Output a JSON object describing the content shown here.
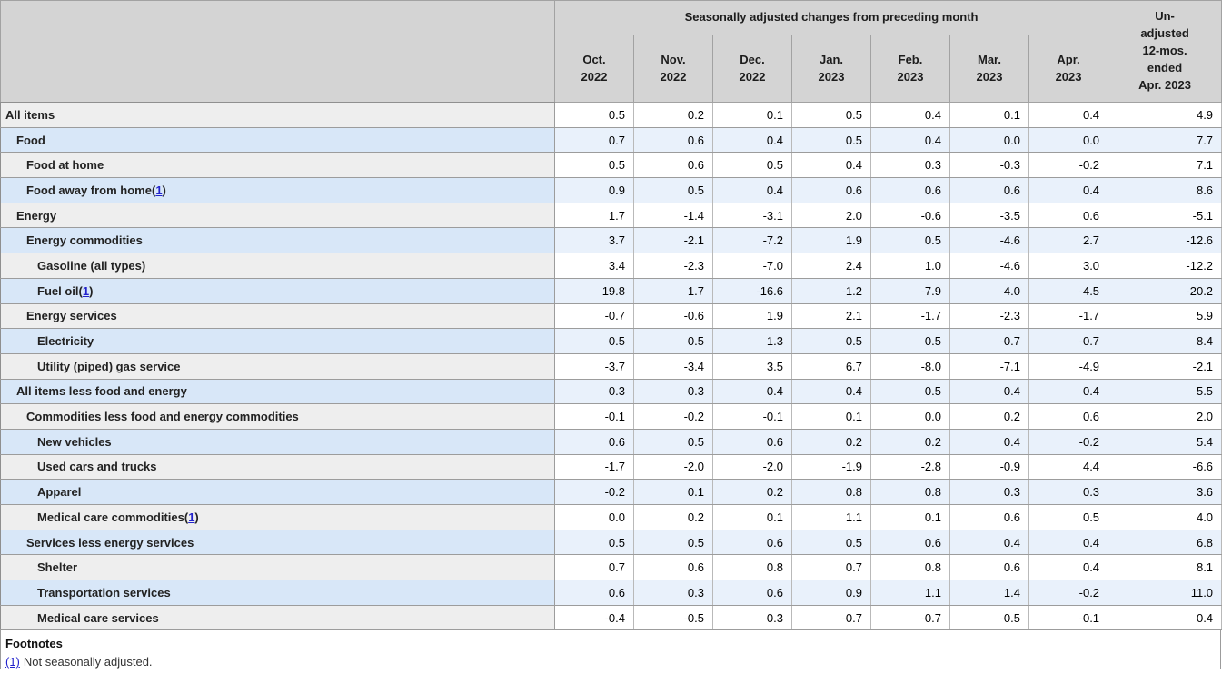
{
  "table": {
    "col_group_title": "Seasonally adjusted changes from preceding month",
    "unadjusted_lines": [
      "Un-",
      "adjusted",
      "12-mos.",
      "ended",
      "Apr. 2023"
    ],
    "months": [
      {
        "month": "Oct.",
        "year": "2022"
      },
      {
        "month": "Nov.",
        "year": "2022"
      },
      {
        "month": "Dec.",
        "year": "2022"
      },
      {
        "month": "Jan.",
        "year": "2023"
      },
      {
        "month": "Feb.",
        "year": "2023"
      },
      {
        "month": "Mar.",
        "year": "2023"
      },
      {
        "month": "Apr.",
        "year": "2023"
      }
    ],
    "rows": [
      {
        "label": "All items",
        "indent": 0,
        "footnote_ref": null,
        "values": [
          "0.5",
          "0.2",
          "0.1",
          "0.5",
          "0.4",
          "0.1",
          "0.4"
        ],
        "unadjusted": "4.9"
      },
      {
        "label": "Food",
        "indent": 1,
        "footnote_ref": null,
        "values": [
          "0.7",
          "0.6",
          "0.4",
          "0.5",
          "0.4",
          "0.0",
          "0.0"
        ],
        "unadjusted": "7.7"
      },
      {
        "label": "Food at home",
        "indent": 2,
        "footnote_ref": null,
        "values": [
          "0.5",
          "0.6",
          "0.5",
          "0.4",
          "0.3",
          "-0.3",
          "-0.2"
        ],
        "unadjusted": "7.1"
      },
      {
        "label": "Food away from home",
        "indent": 2,
        "footnote_ref": "1",
        "values": [
          "0.9",
          "0.5",
          "0.4",
          "0.6",
          "0.6",
          "0.6",
          "0.4"
        ],
        "unadjusted": "8.6"
      },
      {
        "label": "Energy",
        "indent": 1,
        "footnote_ref": null,
        "values": [
          "1.7",
          "-1.4",
          "-3.1",
          "2.0",
          "-0.6",
          "-3.5",
          "0.6"
        ],
        "unadjusted": "-5.1"
      },
      {
        "label": "Energy commodities",
        "indent": 2,
        "footnote_ref": null,
        "values": [
          "3.7",
          "-2.1",
          "-7.2",
          "1.9",
          "0.5",
          "-4.6",
          "2.7"
        ],
        "unadjusted": "-12.6"
      },
      {
        "label": "Gasoline (all types)",
        "indent": 3,
        "footnote_ref": null,
        "values": [
          "3.4",
          "-2.3",
          "-7.0",
          "2.4",
          "1.0",
          "-4.6",
          "3.0"
        ],
        "unadjusted": "-12.2"
      },
      {
        "label": "Fuel oil",
        "indent": 3,
        "footnote_ref": "1",
        "values": [
          "19.8",
          "1.7",
          "-16.6",
          "-1.2",
          "-7.9",
          "-4.0",
          "-4.5"
        ],
        "unadjusted": "-20.2"
      },
      {
        "label": "Energy services",
        "indent": 2,
        "footnote_ref": null,
        "values": [
          "-0.7",
          "-0.6",
          "1.9",
          "2.1",
          "-1.7",
          "-2.3",
          "-1.7"
        ],
        "unadjusted": "5.9"
      },
      {
        "label": "Electricity",
        "indent": 3,
        "footnote_ref": null,
        "values": [
          "0.5",
          "0.5",
          "1.3",
          "0.5",
          "0.5",
          "-0.7",
          "-0.7"
        ],
        "unadjusted": "8.4"
      },
      {
        "label": "Utility (piped) gas service",
        "indent": 3,
        "footnote_ref": null,
        "values": [
          "-3.7",
          "-3.4",
          "3.5",
          "6.7",
          "-8.0",
          "-7.1",
          "-4.9"
        ],
        "unadjusted": "-2.1"
      },
      {
        "label": "All items less food and energy",
        "indent": 1,
        "footnote_ref": null,
        "values": [
          "0.3",
          "0.3",
          "0.4",
          "0.4",
          "0.5",
          "0.4",
          "0.4"
        ],
        "unadjusted": "5.5"
      },
      {
        "label": "Commodities less food and energy commodities",
        "indent": 2,
        "footnote_ref": null,
        "values": [
          "-0.1",
          "-0.2",
          "-0.1",
          "0.1",
          "0.0",
          "0.2",
          "0.6"
        ],
        "unadjusted": "2.0"
      },
      {
        "label": "New vehicles",
        "indent": 3,
        "footnote_ref": null,
        "values": [
          "0.6",
          "0.5",
          "0.6",
          "0.2",
          "0.2",
          "0.4",
          "-0.2"
        ],
        "unadjusted": "5.4"
      },
      {
        "label": "Used cars and trucks",
        "indent": 3,
        "footnote_ref": null,
        "values": [
          "-1.7",
          "-2.0",
          "-2.0",
          "-1.9",
          "-2.8",
          "-0.9",
          "4.4"
        ],
        "unadjusted": "-6.6"
      },
      {
        "label": "Apparel",
        "indent": 3,
        "footnote_ref": null,
        "values": [
          "-0.2",
          "0.1",
          "0.2",
          "0.8",
          "0.8",
          "0.3",
          "0.3"
        ],
        "unadjusted": "3.6"
      },
      {
        "label": "Medical care commodities",
        "indent": 3,
        "footnote_ref": "1",
        "values": [
          "0.0",
          "0.2",
          "0.1",
          "1.1",
          "0.1",
          "0.6",
          "0.5"
        ],
        "unadjusted": "4.0"
      },
      {
        "label": "Services less energy services",
        "indent": 2,
        "footnote_ref": null,
        "values": [
          "0.5",
          "0.5",
          "0.6",
          "0.5",
          "0.6",
          "0.4",
          "0.4"
        ],
        "unadjusted": "6.8"
      },
      {
        "label": "Shelter",
        "indent": 3,
        "footnote_ref": null,
        "values": [
          "0.7",
          "0.6",
          "0.8",
          "0.7",
          "0.8",
          "0.6",
          "0.4"
        ],
        "unadjusted": "8.1"
      },
      {
        "label": "Transportation services",
        "indent": 3,
        "footnote_ref": null,
        "values": [
          "0.6",
          "0.3",
          "0.6",
          "0.9",
          "1.1",
          "1.4",
          "-0.2"
        ],
        "unadjusted": "11.0"
      },
      {
        "label": "Medical care services",
        "indent": 3,
        "footnote_ref": null,
        "values": [
          "-0.4",
          "-0.5",
          "0.3",
          "-0.7",
          "-0.7",
          "-0.5",
          "-0.1"
        ],
        "unadjusted": "0.4"
      }
    ]
  },
  "footnotes": {
    "title": "Footnotes",
    "items": [
      {
        "marker": "(1)",
        "text": "Not seasonally adjusted."
      }
    ]
  },
  "colors": {
    "header_bg": "#d4d4d4",
    "label_row_gray": "#eeeeee",
    "label_row_blue": "#d8e7f8",
    "data_row_white": "#ffffff",
    "data_row_blue": "#e9f1fb",
    "link_blue": "#2222cc",
    "border_dark": "#9c9c9c",
    "border_light": "#b9b9b9"
  }
}
